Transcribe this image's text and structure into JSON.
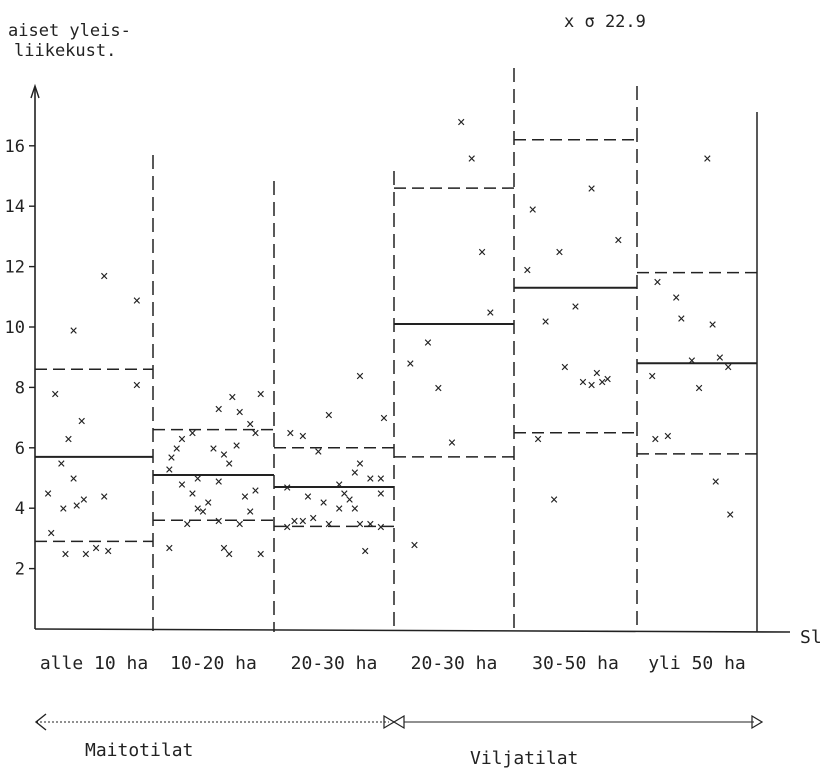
{
  "chart_data": {
    "type": "scatter",
    "title": "",
    "ylabel_lines": [
      "aiset yleis-",
      "liikekust."
    ],
    "xlabel": "Sl",
    "outlier_note": "x σ 22.9",
    "y_ticks": [
      2,
      4,
      6,
      8,
      10,
      12,
      14,
      16
    ],
    "ylim": [
      0,
      17.5
    ],
    "groups": [
      {
        "label": "alle 10 ha",
        "median": 5.7,
        "q1": 2.9,
        "q3": 8.6,
        "points": [
          [
            0.08,
            3.2
          ],
          [
            0.05,
            4.5
          ],
          [
            0.18,
            5.5
          ],
          [
            0.12,
            7.8
          ],
          [
            0.25,
            6.3
          ],
          [
            0.38,
            6.9
          ],
          [
            0.3,
            5.0
          ],
          [
            0.2,
            4.0
          ],
          [
            0.4,
            4.3
          ],
          [
            0.6,
            4.4
          ],
          [
            0.42,
            2.5
          ],
          [
            0.52,
            2.7
          ],
          [
            0.64,
            2.6
          ],
          [
            0.22,
            2.5
          ],
          [
            0.3,
            9.9
          ],
          [
            0.6,
            11.7
          ],
          [
            0.92,
            10.9
          ],
          [
            0.92,
            8.1
          ],
          [
            0.33,
            4.1
          ]
        ]
      },
      {
        "label": "10-20 ha",
        "median": 5.1,
        "q1": 3.6,
        "q3": 6.6,
        "points": [
          [
            0.08,
            5.3
          ],
          [
            0.15,
            6.0
          ],
          [
            0.2,
            4.8
          ],
          [
            0.3,
            4.5
          ],
          [
            0.35,
            5.0
          ],
          [
            0.45,
            4.2
          ],
          [
            0.55,
            4.9
          ],
          [
            0.65,
            5.5
          ],
          [
            0.72,
            6.1
          ],
          [
            0.8,
            4.4
          ],
          [
            0.9,
            4.6
          ],
          [
            0.2,
            6.3
          ],
          [
            0.3,
            6.5
          ],
          [
            0.55,
            7.3
          ],
          [
            0.68,
            7.7
          ],
          [
            0.75,
            7.2
          ],
          [
            0.85,
            6.8
          ],
          [
            0.95,
            7.8
          ],
          [
            0.1,
            5.7
          ],
          [
            0.25,
            3.5
          ],
          [
            0.4,
            3.9
          ],
          [
            0.55,
            3.6
          ],
          [
            0.75,
            3.5
          ],
          [
            0.85,
            3.9
          ],
          [
            0.6,
            2.7
          ],
          [
            0.65,
            2.5
          ],
          [
            0.95,
            2.5
          ],
          [
            0.08,
            2.7
          ],
          [
            0.35,
            4.0
          ],
          [
            0.5,
            6.0
          ],
          [
            0.6,
            5.8
          ],
          [
            0.9,
            6.5
          ]
        ]
      },
      {
        "label": "20-30 ha",
        "median": 4.7,
        "q1": 3.4,
        "q3": 6.0,
        "points": [
          [
            0.05,
            4.7
          ],
          [
            0.12,
            3.6
          ],
          [
            0.2,
            3.6
          ],
          [
            0.3,
            3.7
          ],
          [
            0.4,
            4.2
          ],
          [
            0.45,
            3.5
          ],
          [
            0.55,
            4.0
          ],
          [
            0.6,
            4.5
          ],
          [
            0.7,
            4.0
          ],
          [
            0.75,
            3.5
          ],
          [
            0.85,
            3.5
          ],
          [
            0.95,
            3.4
          ],
          [
            0.2,
            6.4
          ],
          [
            0.35,
            5.9
          ],
          [
            0.45,
            7.1
          ],
          [
            0.7,
            5.2
          ],
          [
            0.75,
            5.5
          ],
          [
            0.85,
            5.0
          ],
          [
            0.95,
            5.0
          ],
          [
            0.98,
            7.0
          ],
          [
            0.75,
            8.4
          ],
          [
            0.8,
            2.6
          ],
          [
            0.05,
            3.4
          ],
          [
            0.08,
            6.5
          ],
          [
            0.25,
            4.4
          ],
          [
            0.55,
            4.8
          ],
          [
            0.65,
            4.3
          ],
          [
            0.95,
            4.5
          ]
        ]
      },
      {
        "label": "20-30 ha",
        "median": 10.1,
        "q1": 5.7,
        "q3": 14.6,
        "points": [
          [
            0.08,
            8.8
          ],
          [
            0.25,
            9.5
          ],
          [
            0.35,
            8.0
          ],
          [
            0.48,
            6.2
          ],
          [
            0.12,
            2.8
          ],
          [
            0.57,
            16.8
          ],
          [
            0.67,
            15.6
          ],
          [
            0.77,
            12.5
          ],
          [
            0.85,
            10.5
          ]
        ]
      },
      {
        "label": "30-50 ha",
        "median": 11.3,
        "q1": 6.5,
        "q3": 16.2,
        "points": [
          [
            0.1,
            13.9
          ],
          [
            0.05,
            11.9
          ],
          [
            0.15,
            6.3
          ],
          [
            0.22,
            10.2
          ],
          [
            0.3,
            4.3
          ],
          [
            0.35,
            12.5
          ],
          [
            0.4,
            8.7
          ],
          [
            0.5,
            10.7
          ],
          [
            0.57,
            8.2
          ],
          [
            0.65,
            8.1
          ],
          [
            0.7,
            8.5
          ],
          [
            0.75,
            8.2
          ],
          [
            0.8,
            8.3
          ],
          [
            0.65,
            14.6
          ],
          [
            0.9,
            12.9
          ]
        ]
      },
      {
        "label": "yli 50 ha",
        "median": 8.8,
        "q1": 5.8,
        "q3": 11.8,
        "points": [
          [
            0.12,
            11.5
          ],
          [
            0.3,
            11.0
          ],
          [
            0.35,
            10.3
          ],
          [
            0.45,
            8.9
          ],
          [
            0.52,
            8.0
          ],
          [
            0.65,
            10.1
          ],
          [
            0.72,
            9.0
          ],
          [
            0.8,
            8.7
          ],
          [
            0.07,
            8.4
          ],
          [
            0.1,
            6.3
          ],
          [
            0.22,
            6.4
          ],
          [
            0.6,
            15.6
          ],
          [
            0.68,
            4.9
          ],
          [
            0.82,
            3.8
          ]
        ]
      }
    ],
    "categories": [
      "Maitotilat",
      "Viljatilat"
    ]
  }
}
